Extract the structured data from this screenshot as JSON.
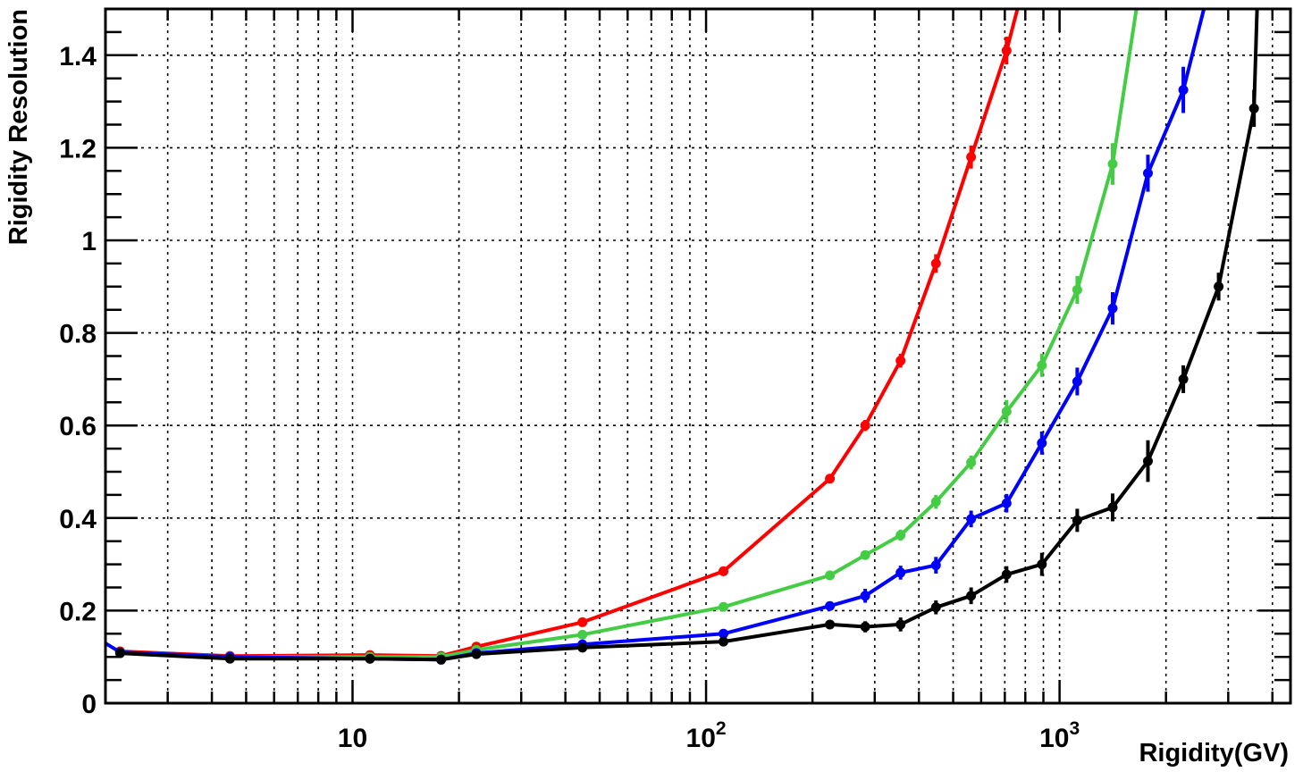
{
  "chart_data": {
    "type": "line",
    "xlabel": "Rigidity(GV)",
    "ylabel": "Rigidity Resolution",
    "xscale": "log",
    "xlim": [
      2,
      4500
    ],
    "ylim": [
      0,
      1.5
    ],
    "grid": true,
    "x_tick_labels": [
      {
        "value": 10,
        "base": "10",
        "exp": ""
      },
      {
        "value": 100,
        "base": "10",
        "exp": "2"
      },
      {
        "value": 1000,
        "base": "10",
        "exp": "3"
      }
    ],
    "y_ticks": [
      0,
      0.2,
      0.4,
      0.6,
      0.8,
      1,
      1.2,
      1.4
    ],
    "y_tick_labels": [
      "0",
      "0.2",
      "0.4",
      "0.6",
      "0.8",
      "1",
      "1.2",
      "1.4"
    ],
    "series": [
      {
        "color": "#ff0000",
        "points": [
          {
            "x": 2.2,
            "y": 0.112,
            "err": 0.004
          },
          {
            "x": 4.5,
            "y": 0.102,
            "err": 0.003
          },
          {
            "x": 11.2,
            "y": 0.104,
            "err": 0.003
          },
          {
            "x": 17.8,
            "y": 0.102,
            "err": 0.003
          },
          {
            "x": 22.4,
            "y": 0.122,
            "err": 0.004
          },
          {
            "x": 44.7,
            "y": 0.175,
            "err": 0.004
          },
          {
            "x": 112,
            "y": 0.285,
            "err": 0.006
          },
          {
            "x": 224,
            "y": 0.485,
            "err": 0.008
          },
          {
            "x": 282,
            "y": 0.6,
            "err": 0.012
          },
          {
            "x": 355,
            "y": 0.74,
            "err": 0.015
          },
          {
            "x": 447,
            "y": 0.95,
            "err": 0.02
          },
          {
            "x": 562,
            "y": 1.18,
            "err": 0.025
          },
          {
            "x": 708,
            "y": 1.41,
            "err": 0.03
          },
          {
            "x": 760,
            "y": 1.5,
            "err": 0
          }
        ]
      },
      {
        "color": "#44cc44",
        "points": [
          {
            "x": 2.2,
            "y": 0.11,
            "err": 0.004
          },
          {
            "x": 4.5,
            "y": 0.1,
            "err": 0.003
          },
          {
            "x": 11.2,
            "y": 0.1,
            "err": 0.003
          },
          {
            "x": 17.8,
            "y": 0.1,
            "err": 0.003
          },
          {
            "x": 22.4,
            "y": 0.115,
            "err": 0.004
          },
          {
            "x": 44.7,
            "y": 0.148,
            "err": 0.004
          },
          {
            "x": 112,
            "y": 0.208,
            "err": 0.005
          },
          {
            "x": 224,
            "y": 0.276,
            "err": 0.006
          },
          {
            "x": 282,
            "y": 0.32,
            "err": 0.007
          },
          {
            "x": 355,
            "y": 0.363,
            "err": 0.012
          },
          {
            "x": 447,
            "y": 0.435,
            "err": 0.015
          },
          {
            "x": 562,
            "y": 0.52,
            "err": 0.015
          },
          {
            "x": 708,
            "y": 0.63,
            "err": 0.025
          },
          {
            "x": 891,
            "y": 0.73,
            "err": 0.025
          },
          {
            "x": 1122,
            "y": 0.893,
            "err": 0.03
          },
          {
            "x": 1413,
            "y": 1.165,
            "err": 0.045
          },
          {
            "x": 1650,
            "y": 1.5,
            "err": 0
          }
        ]
      },
      {
        "color": "#0000ff",
        "points": [
          {
            "x": 1.9,
            "y": 0.14,
            "err": 0
          },
          {
            "x": 2.2,
            "y": 0.11,
            "err": 0.004
          },
          {
            "x": 4.5,
            "y": 0.1,
            "err": 0.003
          },
          {
            "x": 11.2,
            "y": 0.096,
            "err": 0.003
          },
          {
            "x": 17.8,
            "y": 0.094,
            "err": 0.003
          },
          {
            "x": 22.4,
            "y": 0.108,
            "err": 0.004
          },
          {
            "x": 44.7,
            "y": 0.127,
            "err": 0.004
          },
          {
            "x": 112,
            "y": 0.15,
            "err": 0.005
          },
          {
            "x": 224,
            "y": 0.21,
            "err": 0.007
          },
          {
            "x": 282,
            "y": 0.232,
            "err": 0.015
          },
          {
            "x": 355,
            "y": 0.282,
            "err": 0.015
          },
          {
            "x": 447,
            "y": 0.298,
            "err": 0.018
          },
          {
            "x": 562,
            "y": 0.398,
            "err": 0.018
          },
          {
            "x": 708,
            "y": 0.432,
            "err": 0.02
          },
          {
            "x": 891,
            "y": 0.562,
            "err": 0.025
          },
          {
            "x": 1122,
            "y": 0.695,
            "err": 0.03
          },
          {
            "x": 1413,
            "y": 0.853,
            "err": 0.035
          },
          {
            "x": 1778,
            "y": 1.145,
            "err": 0.04
          },
          {
            "x": 2239,
            "y": 1.325,
            "err": 0.05
          },
          {
            "x": 2560,
            "y": 1.5,
            "err": 0
          }
        ]
      },
      {
        "color": "#000000",
        "points": [
          {
            "x": 2.2,
            "y": 0.108,
            "err": 0.004
          },
          {
            "x": 4.5,
            "y": 0.096,
            "err": 0.003
          },
          {
            "x": 11.2,
            "y": 0.096,
            "err": 0.003
          },
          {
            "x": 17.8,
            "y": 0.094,
            "err": 0.003
          },
          {
            "x": 22.4,
            "y": 0.106,
            "err": 0.004
          },
          {
            "x": 44.7,
            "y": 0.12,
            "err": 0.004
          },
          {
            "x": 112,
            "y": 0.133,
            "err": 0.005
          },
          {
            "x": 224,
            "y": 0.17,
            "err": 0.007
          },
          {
            "x": 282,
            "y": 0.165,
            "err": 0.012
          },
          {
            "x": 355,
            "y": 0.17,
            "err": 0.015
          },
          {
            "x": 447,
            "y": 0.207,
            "err": 0.015
          },
          {
            "x": 562,
            "y": 0.232,
            "err": 0.018
          },
          {
            "x": 708,
            "y": 0.278,
            "err": 0.018
          },
          {
            "x": 891,
            "y": 0.3,
            "err": 0.025
          },
          {
            "x": 1122,
            "y": 0.395,
            "err": 0.025
          },
          {
            "x": 1413,
            "y": 0.423,
            "err": 0.03
          },
          {
            "x": 1778,
            "y": 0.523,
            "err": 0.045
          },
          {
            "x": 2239,
            "y": 0.7,
            "err": 0.03
          },
          {
            "x": 2818,
            "y": 0.9,
            "err": 0.03
          },
          {
            "x": 3548,
            "y": 1.285,
            "err": 0.04
          },
          {
            "x": 3620,
            "y": 1.5,
            "err": 0
          }
        ]
      }
    ]
  }
}
